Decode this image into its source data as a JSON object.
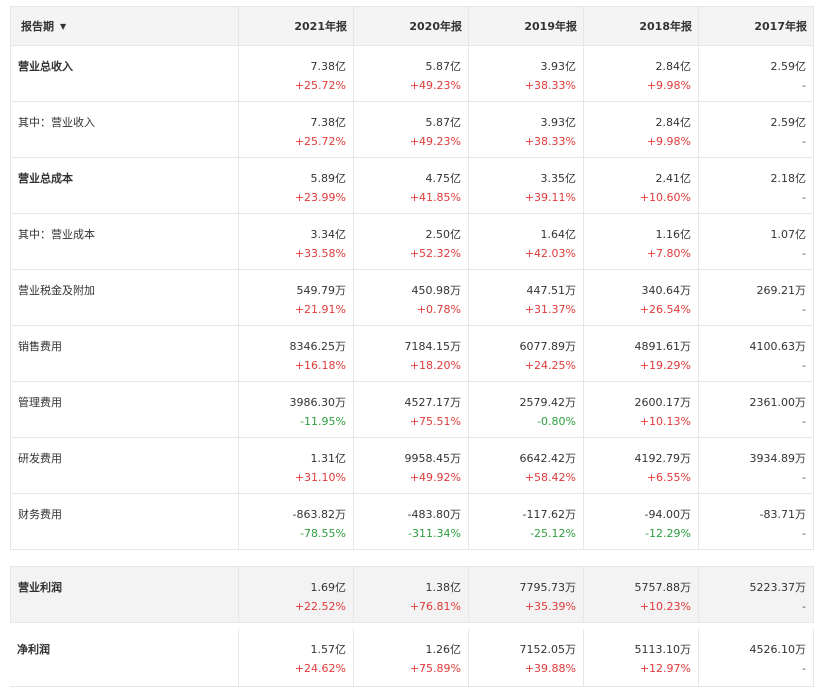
{
  "header": {
    "period_label": "报告期",
    "caret": "▼",
    "years": [
      "2021年报",
      "2020年报",
      "2019年报",
      "2018年报",
      "2017年报"
    ]
  },
  "rows": [
    {
      "label": "营业总收入",
      "bold": true,
      "cells": [
        {
          "value": "7.38亿",
          "change": "+25.72%",
          "dir": "up"
        },
        {
          "value": "5.87亿",
          "change": "+49.23%",
          "dir": "up"
        },
        {
          "value": "3.93亿",
          "change": "+38.33%",
          "dir": "up"
        },
        {
          "value": "2.84亿",
          "change": "+9.98%",
          "dir": "up"
        },
        {
          "value": "2.59亿",
          "change": "-",
          "dir": "none"
        }
      ]
    },
    {
      "label": "其中：营业收入",
      "bold": false,
      "cells": [
        {
          "value": "7.38亿",
          "change": "+25.72%",
          "dir": "up"
        },
        {
          "value": "5.87亿",
          "change": "+49.23%",
          "dir": "up"
        },
        {
          "value": "3.93亿",
          "change": "+38.33%",
          "dir": "up"
        },
        {
          "value": "2.84亿",
          "change": "+9.98%",
          "dir": "up"
        },
        {
          "value": "2.59亿",
          "change": "-",
          "dir": "none"
        }
      ]
    },
    {
      "label": "营业总成本",
      "bold": true,
      "cells": [
        {
          "value": "5.89亿",
          "change": "+23.99%",
          "dir": "up"
        },
        {
          "value": "4.75亿",
          "change": "+41.85%",
          "dir": "up"
        },
        {
          "value": "3.35亿",
          "change": "+39.11%",
          "dir": "up"
        },
        {
          "value": "2.41亿",
          "change": "+10.60%",
          "dir": "up"
        },
        {
          "value": "2.18亿",
          "change": "-",
          "dir": "none"
        }
      ]
    },
    {
      "label": "其中：营业成本",
      "bold": false,
      "cells": [
        {
          "value": "3.34亿",
          "change": "+33.58%",
          "dir": "up"
        },
        {
          "value": "2.50亿",
          "change": "+52.32%",
          "dir": "up"
        },
        {
          "value": "1.64亿",
          "change": "+42.03%",
          "dir": "up"
        },
        {
          "value": "1.16亿",
          "change": "+7.80%",
          "dir": "up"
        },
        {
          "value": "1.07亿",
          "change": "-",
          "dir": "none"
        }
      ]
    },
    {
      "label": "营业税金及附加",
      "bold": false,
      "cells": [
        {
          "value": "549.79万",
          "change": "+21.91%",
          "dir": "up"
        },
        {
          "value": "450.98万",
          "change": "+0.78%",
          "dir": "up"
        },
        {
          "value": "447.51万",
          "change": "+31.37%",
          "dir": "up"
        },
        {
          "value": "340.64万",
          "change": "+26.54%",
          "dir": "up"
        },
        {
          "value": "269.21万",
          "change": "-",
          "dir": "none"
        }
      ]
    },
    {
      "label": "销售费用",
      "bold": false,
      "cells": [
        {
          "value": "8346.25万",
          "change": "+16.18%",
          "dir": "up"
        },
        {
          "value": "7184.15万",
          "change": "+18.20%",
          "dir": "up"
        },
        {
          "value": "6077.89万",
          "change": "+24.25%",
          "dir": "up"
        },
        {
          "value": "4891.61万",
          "change": "+19.29%",
          "dir": "up"
        },
        {
          "value": "4100.63万",
          "change": "-",
          "dir": "none"
        }
      ]
    },
    {
      "label": "管理费用",
      "bold": false,
      "cells": [
        {
          "value": "3986.30万",
          "change": "-11.95%",
          "dir": "down"
        },
        {
          "value": "4527.17万",
          "change": "+75.51%",
          "dir": "up"
        },
        {
          "value": "2579.42万",
          "change": "-0.80%",
          "dir": "down"
        },
        {
          "value": "2600.17万",
          "change": "+10.13%",
          "dir": "up"
        },
        {
          "value": "2361.00万",
          "change": "-",
          "dir": "none"
        }
      ]
    },
    {
      "label": "研发费用",
      "bold": false,
      "cells": [
        {
          "value": "1.31亿",
          "change": "+31.10%",
          "dir": "up"
        },
        {
          "value": "9958.45万",
          "change": "+49.92%",
          "dir": "up"
        },
        {
          "value": "6642.42万",
          "change": "+58.42%",
          "dir": "up"
        },
        {
          "value": "4192.79万",
          "change": "+6.55%",
          "dir": "up"
        },
        {
          "value": "3934.89万",
          "change": "-",
          "dir": "none"
        }
      ]
    },
    {
      "label": "财务费用",
      "bold": false,
      "cells": [
        {
          "value": "-863.82万",
          "change": "-78.55%",
          "dir": "down"
        },
        {
          "value": "-483.80万",
          "change": "-311.34%",
          "dir": "down"
        },
        {
          "value": "-117.62万",
          "change": "-25.12%",
          "dir": "down"
        },
        {
          "value": "-94.00万",
          "change": "-12.29%",
          "dir": "down"
        },
        {
          "value": "-83.71万",
          "change": "-",
          "dir": "none"
        }
      ]
    }
  ],
  "operating_profit": {
    "label": "营业利润",
    "cells": [
      {
        "value": "1.69亿",
        "change": "+22.52%",
        "dir": "up"
      },
      {
        "value": "1.38亿",
        "change": "+76.81%",
        "dir": "up"
      },
      {
        "value": "7795.73万",
        "change": "+35.39%",
        "dir": "up"
      },
      {
        "value": "5757.88万",
        "change": "+10.23%",
        "dir": "up"
      },
      {
        "value": "5223.37万",
        "change": "-",
        "dir": "none"
      }
    ]
  },
  "net_profit": {
    "label": "净利润",
    "cells": [
      {
        "value": "1.57亿",
        "change": "+24.62%",
        "dir": "up"
      },
      {
        "value": "1.26亿",
        "change": "+75.89%",
        "dir": "up"
      },
      {
        "value": "7152.05万",
        "change": "+39.88%",
        "dir": "up"
      },
      {
        "value": "5113.10万",
        "change": "+12.97%",
        "dir": "up"
      },
      {
        "value": "4526.10万",
        "change": "-",
        "dir": "none"
      }
    ]
  },
  "colors": {
    "up": "#e03a3a",
    "down": "#2e9e3f",
    "header_bg": "#f4f4f4"
  }
}
